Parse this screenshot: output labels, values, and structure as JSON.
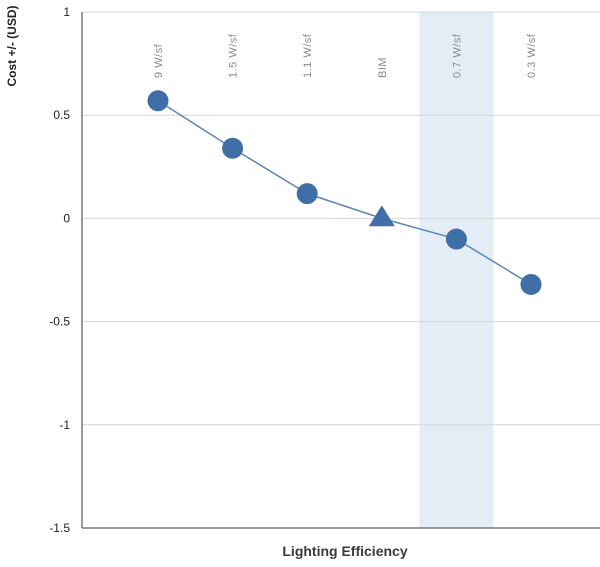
{
  "chart_data": {
    "type": "line",
    "categories": [
      "9 W/sf",
      "1.5 W/sf",
      "1.1 W/sf",
      "BIM",
      "0.7 W/sf",
      "0.3 W/sf"
    ],
    "values": [
      0.57,
      0.34,
      0.12,
      0.0,
      -0.1,
      -0.32
    ],
    "markers": [
      "circle",
      "circle",
      "circle",
      "triangle",
      "circle",
      "circle"
    ],
    "highlighted_category": "0.7 W/sf",
    "title": "",
    "xlabel": "Lighting Efficiency",
    "ylabel": "Cost +/- (USD)",
    "ylim": [
      -1.5,
      1
    ],
    "yticks": [
      "1",
      "0.5",
      "0",
      "-0.5",
      "-1",
      "-1.5"
    ],
    "grid": true,
    "colors": {
      "series": "#3f6fa6",
      "line": "#5b86b8",
      "highlight_band": "#e4edf6",
      "grid": "#d6d6d6"
    }
  }
}
